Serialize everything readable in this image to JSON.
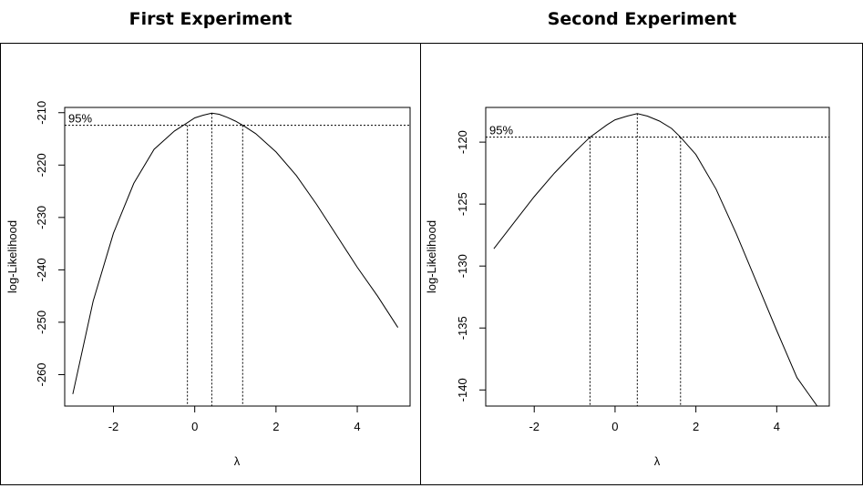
{
  "chart_data": [
    {
      "type": "line",
      "title": "First Experiment",
      "xlabel": "λ",
      "ylabel": "log-Likelihood",
      "xlim": [
        -3.2,
        5.3
      ],
      "ylim": [
        -266,
        -209
      ],
      "xticks": [
        -2,
        0,
        2,
        4
      ],
      "yticks": [
        -260,
        -250,
        -240,
        -230,
        -220,
        -210
      ],
      "ci_label": "95%",
      "ci_level": -212.4,
      "lambda_max": 0.42,
      "ci_lower": -0.18,
      "ci_upper": 1.18,
      "grid": false,
      "x": [
        -3.0,
        -2.5,
        -2.0,
        -1.5,
        -1.0,
        -0.5,
        -0.2,
        0.0,
        0.2,
        0.42,
        0.6,
        0.8,
        1.0,
        1.2,
        1.5,
        2.0,
        2.5,
        3.0,
        3.5,
        4.0,
        4.5,
        5.0
      ],
      "y": [
        -263.7,
        -246.0,
        -233.0,
        -223.5,
        -217.0,
        -213.5,
        -212.0,
        -211.0,
        -210.5,
        -210.1,
        -210.3,
        -210.9,
        -211.6,
        -212.5,
        -214.0,
        -217.5,
        -222.0,
        -227.5,
        -233.5,
        -239.5,
        -245.0,
        -251.0
      ]
    },
    {
      "type": "line",
      "title": "Second Experiment",
      "xlabel": "λ",
      "ylabel": "log-Likelihood",
      "xlim": [
        -3.2,
        5.3
      ],
      "ylim": [
        -141.3,
        -117.2
      ],
      "xticks": [
        -2,
        0,
        2,
        4
      ],
      "yticks": [
        -140,
        -135,
        -130,
        -125,
        -120
      ],
      "ci_label": "95%",
      "ci_level": -119.6,
      "lambda_max": 0.55,
      "ci_lower": -0.62,
      "ci_upper": 1.62,
      "grid": false,
      "x": [
        -3.0,
        -2.5,
        -2.0,
        -1.5,
        -1.0,
        -0.62,
        -0.2,
        0.0,
        0.3,
        0.55,
        0.8,
        1.1,
        1.4,
        1.62,
        2.0,
        2.5,
        3.0,
        3.5,
        4.0,
        4.5,
        5.0
      ],
      "y": [
        -128.6,
        -126.5,
        -124.4,
        -122.5,
        -120.8,
        -119.6,
        -118.6,
        -118.2,
        -117.9,
        -117.7,
        -117.9,
        -118.3,
        -118.9,
        -119.6,
        -121.0,
        -123.8,
        -127.4,
        -131.3,
        -135.2,
        -139.0,
        -141.3
      ]
    }
  ]
}
